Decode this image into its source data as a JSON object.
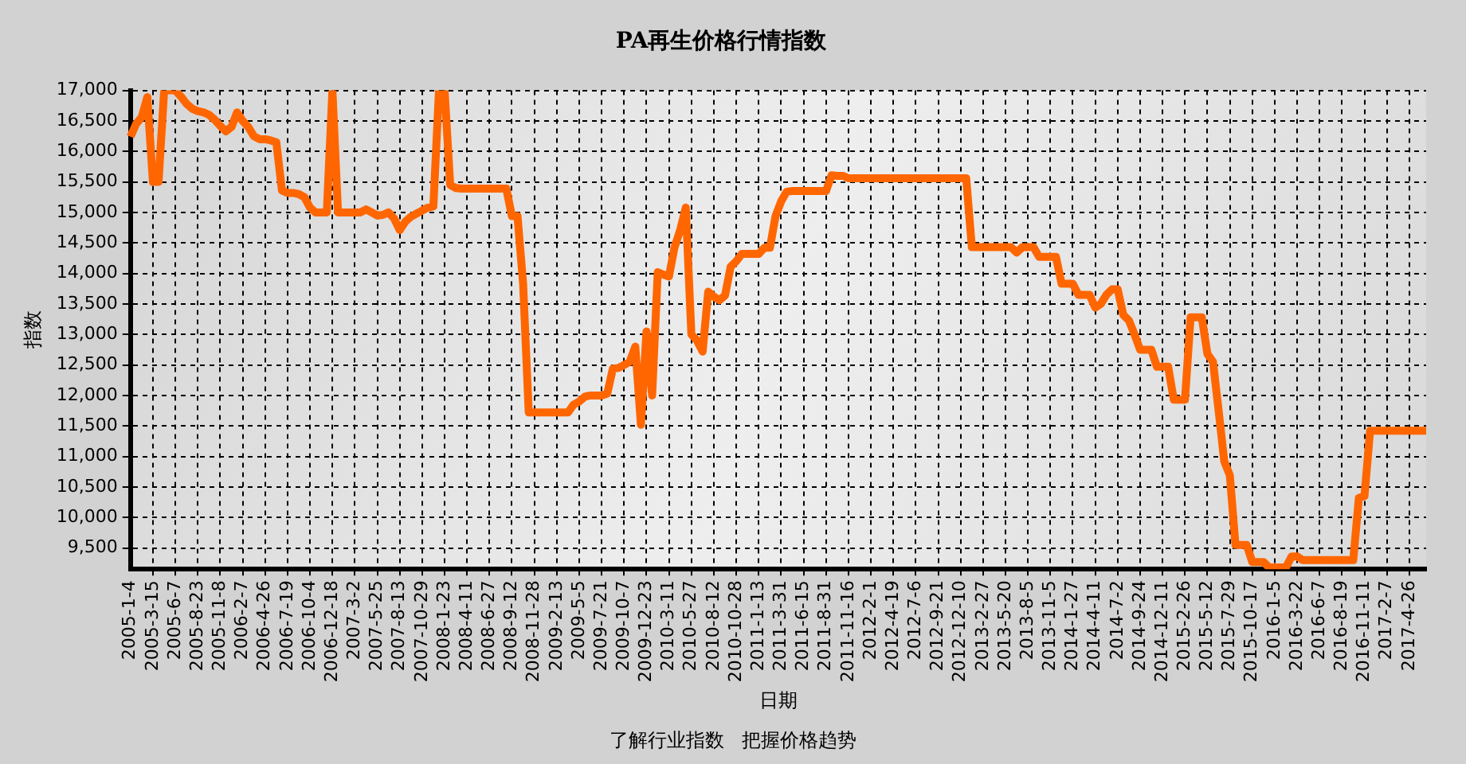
{
  "chart_data": {
    "type": "line",
    "title": "PA再生价格行情指数",
    "xlabel": "日期",
    "ylabel": "指数",
    "categories": [
      "2005-1-4",
      null,
      null,
      null,
      "2005-3-15",
      null,
      null,
      null,
      "2005-6-7",
      null,
      null,
      null,
      "2005-8-23",
      null,
      null,
      null,
      "2005-11-8",
      null,
      null,
      null,
      "2006-2-7",
      null,
      null,
      null,
      "2006-4-26",
      null,
      null,
      null,
      "2006-7-19",
      null,
      null,
      null,
      "2006-10-4",
      null,
      null,
      null,
      "2006-12-18",
      null,
      null,
      null,
      "2007-3-2",
      null,
      null,
      null,
      "2007-5-25",
      null,
      null,
      null,
      "2007-8-13",
      null,
      null,
      null,
      "2007-10-29",
      null,
      null,
      null,
      "2008-1-23",
      null,
      null,
      null,
      "2008-4-11",
      null,
      null,
      null,
      "2008-6-27",
      null,
      null,
      null,
      "2008-9-12",
      null,
      null,
      null,
      "2008-11-28",
      null,
      null,
      null,
      "2009-2-13",
      null,
      null,
      null,
      "2009-5-5",
      null,
      null,
      null,
      "2009-7-21",
      null,
      null,
      null,
      "2009-10-7",
      null,
      null,
      null,
      "2009-12-23",
      null,
      null,
      null,
      "2010-3-11",
      null,
      null,
      null,
      "2010-5-27",
      null,
      null,
      null,
      "2010-8-12",
      null,
      null,
      null,
      "2010-10-28",
      null,
      null,
      null,
      "2011-1-13",
      null,
      null,
      null,
      "2011-3-31",
      null,
      null,
      null,
      "2011-6-15",
      null,
      null,
      null,
      "2011-8-31",
      null,
      null,
      null,
      "2011-11-16",
      null,
      null,
      null,
      "2012-2-1",
      null,
      null,
      null,
      "2012-4-19",
      null,
      null,
      null,
      "2012-7-6",
      null,
      null,
      null,
      "2012-9-21",
      null,
      null,
      null,
      "2012-12-10",
      null,
      null,
      null,
      "2013-2-27",
      null,
      null,
      null,
      "2013-5-20",
      null,
      null,
      null,
      "2013-8-5",
      null,
      null,
      null,
      "2013-11-5",
      null,
      null,
      null,
      "2014-1-27",
      null,
      null,
      null,
      "2014-4-11",
      null,
      null,
      null,
      "2014-7-2",
      null,
      null,
      null,
      "2014-9-24",
      null,
      null,
      null,
      "2014-12-11",
      null,
      null,
      null,
      "2015-2-26",
      null,
      null,
      null,
      "2015-5-12",
      null,
      null,
      null,
      "2015-7-29",
      null,
      null,
      null,
      "2015-10-17",
      null,
      null,
      null,
      "2016-1-5",
      null,
      null,
      null,
      "2016-3-22",
      null,
      null,
      null,
      "2016-6-7",
      null,
      null,
      null,
      "2016-8-19",
      null,
      null,
      null,
      "2016-11-11",
      null,
      null,
      null,
      "2017-2-7",
      null,
      null,
      null,
      "2017-4-26",
      null,
      null,
      null
    ],
    "series": [
      {
        "color": "#ff6600",
        "values": [
          16240,
          16450,
          16560,
          16890,
          15500,
          15500,
          17000,
          17000,
          17000,
          16900,
          16780,
          16700,
          16660,
          16640,
          16600,
          16520,
          16420,
          16330,
          16400,
          16640,
          16500,
          16400,
          16250,
          16200,
          16200,
          16180,
          16150,
          15360,
          15320,
          15320,
          15300,
          15250,
          15080,
          15000,
          15000,
          15000,
          17000,
          15000,
          15000,
          15000,
          15000,
          15000,
          15050,
          15000,
          14950,
          14960,
          15000,
          14900,
          14710,
          14850,
          14930,
          14980,
          15030,
          15080,
          15100,
          17000,
          17000,
          15450,
          15400,
          15390,
          15390,
          15390,
          15390,
          15390,
          15390,
          15390,
          15390,
          15390,
          14940,
          14940,
          13830,
          11720,
          11720,
          11720,
          11720,
          11720,
          11720,
          11720,
          11720,
          11850,
          11900,
          11980,
          12000,
          12000,
          12000,
          12030,
          12440,
          12450,
          12500,
          12550,
          12800,
          11520,
          13050,
          12000,
          14020,
          13980,
          13950,
          14430,
          14710,
          15080,
          13000,
          12900,
          12720,
          13700,
          13620,
          13560,
          13640,
          14110,
          14200,
          14320,
          14320,
          14320,
          14320,
          14420,
          14420,
          14940,
          15180,
          15340,
          15350,
          15350,
          15350,
          15350,
          15350,
          15350,
          15350,
          15610,
          15600,
          15600,
          15560,
          15560,
          15560,
          15560,
          15560,
          15560,
          15560,
          15560,
          15560,
          15560,
          15560,
          15560,
          15560,
          15560,
          15560,
          15560,
          15560,
          15560,
          15560,
          15560,
          15560,
          15560,
          14430,
          14430,
          14430,
          14430,
          14430,
          14430,
          14430,
          14430,
          14340,
          14430,
          14430,
          14430,
          14270,
          14270,
          14270,
          14270,
          13830,
          13830,
          13830,
          13650,
          13650,
          13650,
          13440,
          13500,
          13650,
          13740,
          13740,
          13320,
          13230,
          13000,
          12750,
          12750,
          12750,
          12470,
          12470,
          12470,
          11930,
          11930,
          11930,
          13280,
          13280,
          13280,
          12680,
          12550,
          11750,
          10920,
          10690,
          9550,
          9550,
          9550,
          9270,
          9270,
          9270,
          9180,
          9180,
          9180,
          9180,
          9360,
          9360,
          9300,
          9300,
          9300,
          9300,
          9300,
          9300,
          9300,
          9300,
          9300,
          9300,
          10320,
          10350,
          11420,
          11420,
          11420,
          11420,
          11420,
          11420,
          11420,
          11420,
          11420,
          11420,
          11420
        ]
      }
    ],
    "ylim": [
      9150,
      17000
    ],
    "yticks": [
      {
        "value": 9500,
        "label": "9,500"
      },
      {
        "value": 10000,
        "label": "10,000"
      },
      {
        "value": 10500,
        "label": "10,500"
      },
      {
        "value": 11000,
        "label": "11,000"
      },
      {
        "value": 11500,
        "label": "11,500"
      },
      {
        "value": 12000,
        "label": "12,000"
      },
      {
        "value": 12500,
        "label": "12,500"
      },
      {
        "value": 13000,
        "label": "13,000"
      },
      {
        "value": 13500,
        "label": "13,500"
      },
      {
        "value": 14000,
        "label": "14,000"
      },
      {
        "value": 14500,
        "label": "14,500"
      },
      {
        "value": 15000,
        "label": "15,000"
      },
      {
        "value": 15500,
        "label": "15,500"
      },
      {
        "value": 16000,
        "label": "16,000"
      },
      {
        "value": 16500,
        "label": "16,500"
      },
      {
        "value": 17000,
        "label": "17,000"
      }
    ],
    "grid": true,
    "marker": "none",
    "line_style": "solid",
    "annotations": [
      "了解行业指数   把握价格趋势"
    ]
  }
}
